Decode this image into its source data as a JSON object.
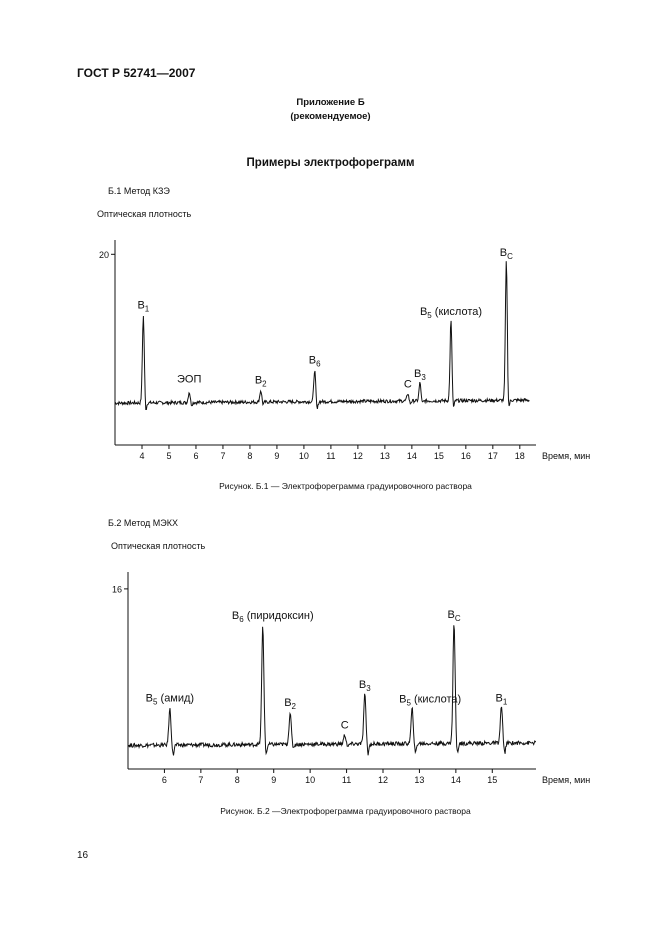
{
  "header": {
    "standard": "ГОСТ Р 52741—2007"
  },
  "appendix": {
    "title": "Приложение Б",
    "status": "(рекомендуемое)"
  },
  "section_title": "Примеры электрофореграмм",
  "page_number": "16",
  "methods": [
    {
      "heading": "Б.1 Метод КЗЭ",
      "caption": "Рисунок. Б.1 — Электрофореграмма градуировочного раствора"
    },
    {
      "heading": "Б.2 Метод МЭКХ",
      "caption": "Рисунок. Б.2 —Электрофореграмма градуировочного раствора"
    }
  ],
  "chart_data": [
    {
      "type": "line",
      "ylabel": "Оптическая плотность",
      "xlabel": "Время, мин",
      "y_tick_labels": [
        "20"
      ],
      "x_ticks": [
        4,
        5,
        6,
        7,
        8,
        9,
        10,
        11,
        12,
        13,
        14,
        15,
        16,
        17,
        18
      ],
      "xlim": [
        3.0,
        18.6
      ],
      "ylim": [
        0,
        21.5
      ],
      "grid": false,
      "baseline": 4.4,
      "peaks": [
        {
          "label": "B",
          "sub": "1",
          "suffix": "",
          "x": 4.05,
          "y": 13.5
        },
        {
          "label": "ЭОП",
          "sub": "",
          "suffix": "",
          "x": 5.75,
          "y": 5.5
        },
        {
          "label": "B",
          "sub": "2",
          "suffix": "",
          "x": 8.4,
          "y": 5.6
        },
        {
          "label": "B",
          "sub": "6",
          "suffix": "",
          "x": 10.4,
          "y": 7.7
        },
        {
          "label": "C",
          "sub": "",
          "suffix": "",
          "x": 13.85,
          "y": 5.2
        },
        {
          "label": "B",
          "sub": "3",
          "suffix": "",
          "x": 14.3,
          "y": 6.3
        },
        {
          "label": "B",
          "sub": "5",
          "suffix": " (кислота)",
          "x": 15.45,
          "y": 12.8
        },
        {
          "label": "B",
          "sub": "C",
          "suffix": "",
          "x": 17.5,
          "y": 19.0
        }
      ]
    },
    {
      "type": "line",
      "ylabel": "Оптическая плотность",
      "xlabel": "Время, мин",
      "y_tick_labels": [
        "16"
      ],
      "x_ticks": [
        6,
        7,
        8,
        9,
        10,
        11,
        12,
        13,
        14,
        15
      ],
      "xlim": [
        5.0,
        16.2
      ],
      "ylim": [
        0,
        17.5
      ],
      "grid": false,
      "baseline": 2.1,
      "peaks": [
        {
          "label": "B",
          "sub": "5",
          "suffix": " (амид)",
          "x": 6.15,
          "y": 5.3
        },
        {
          "label": "B",
          "sub": "6",
          "suffix": " (пиридоксин)",
          "x": 8.7,
          "y": 12.6
        },
        {
          "label": "B",
          "sub": "2",
          "suffix": "",
          "x": 9.45,
          "y": 4.9
        },
        {
          "label": "C",
          "sub": "",
          "suffix": "",
          "x": 10.95,
          "y": 2.9
        },
        {
          "label": "B",
          "sub": "3",
          "suffix": "",
          "x": 11.5,
          "y": 6.5
        },
        {
          "label": "B",
          "sub": "5",
          "suffix": " (кислота)",
          "x": 12.8,
          "y": 5.2
        },
        {
          "label": "B",
          "sub": "C",
          "suffix": "",
          "x": 13.95,
          "y": 12.7
        },
        {
          "label": "B",
          "sub": "1",
          "suffix": "",
          "x": 15.25,
          "y": 5.3
        }
      ]
    }
  ]
}
